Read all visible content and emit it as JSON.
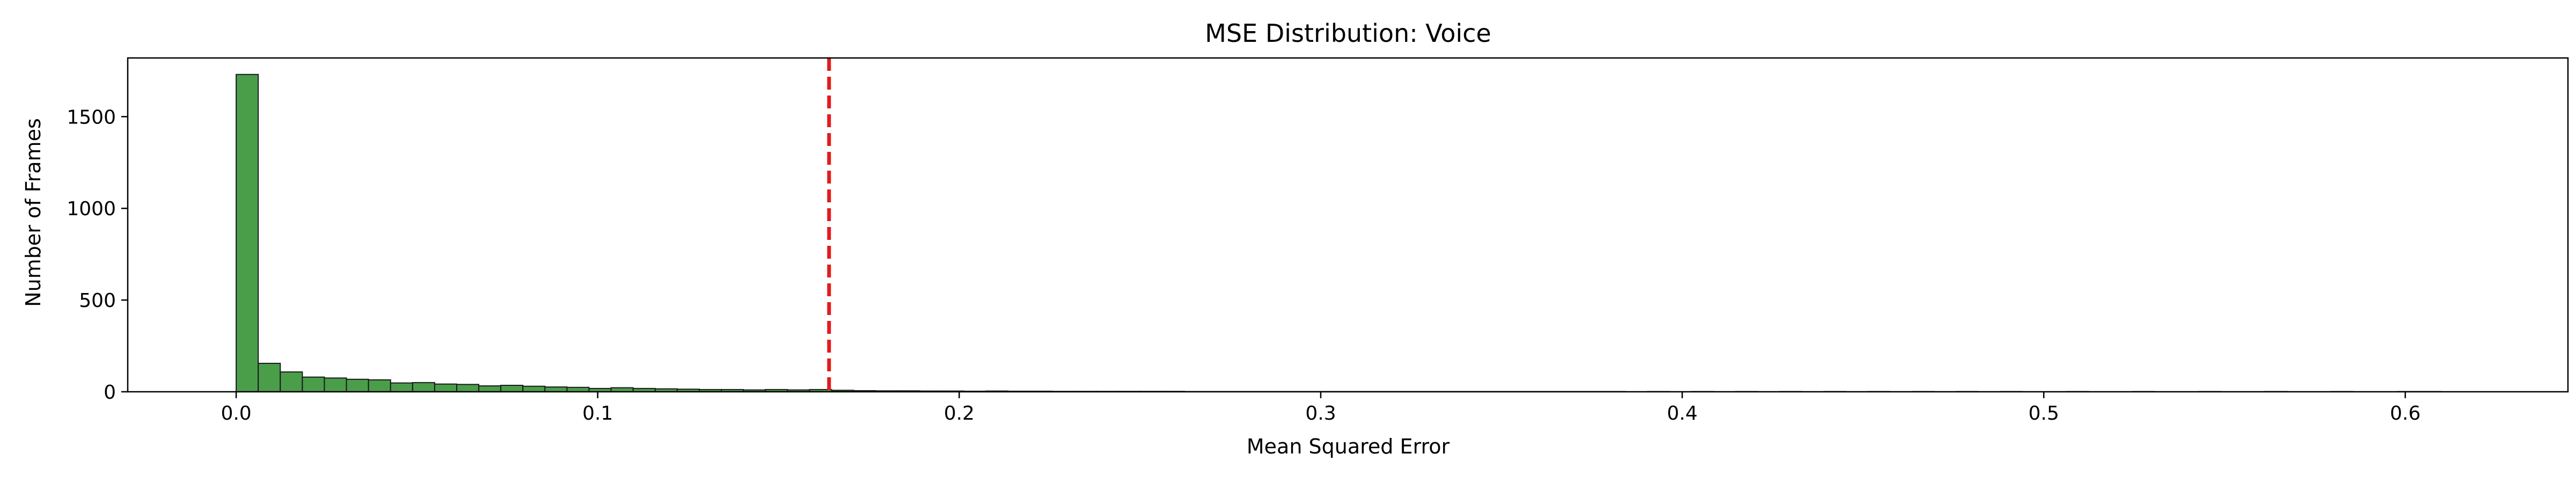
{
  "chart_data": {
    "type": "histogram",
    "title": "MSE Distribution: Voice",
    "xlabel": "Mean Squared Error",
    "ylabel": "Number of Frames",
    "xlim": [
      -0.03,
      0.645
    ],
    "ylim": [
      0,
      1820
    ],
    "xticks": [
      0.0,
      0.1,
      0.2,
      0.3,
      0.4,
      0.5,
      0.6
    ],
    "xtick_labels": [
      "0.0",
      "0.1",
      "0.2",
      "0.3",
      "0.4",
      "0.5",
      "0.6"
    ],
    "yticks": [
      0,
      500,
      1000,
      1500
    ],
    "ytick_labels": [
      "0",
      "500",
      "1000",
      "1500"
    ],
    "bin_width": 0.0061,
    "bin_start": 0.0,
    "counts": [
      1730,
      155,
      108,
      80,
      75,
      68,
      65,
      48,
      50,
      42,
      40,
      32,
      35,
      30,
      26,
      24,
      18,
      22,
      18,
      16,
      14,
      12,
      12,
      10,
      12,
      10,
      12,
      8,
      6,
      5,
      5,
      4,
      4,
      3,
      4,
      3,
      3,
      2,
      2,
      2,
      2,
      2,
      2,
      1,
      1,
      1,
      1,
      1,
      1,
      1,
      1,
      1,
      1,
      1,
      1,
      1,
      1,
      1,
      1,
      1,
      1,
      1,
      1,
      0,
      1,
      0,
      1,
      0,
      1,
      0,
      1,
      0,
      1,
      0,
      1,
      0,
      1,
      0,
      1,
      0,
      1,
      0,
      0,
      1,
      0,
      0,
      1,
      0,
      0,
      1,
      0,
      0,
      1,
      0,
      0,
      1,
      0,
      0,
      1,
      1
    ],
    "threshold": 0.164,
    "colors": {
      "bar_fill": "#4a9e4a",
      "bar_edge": "#1a1a1a",
      "threshold_line": "#e31a1c"
    },
    "grid": false,
    "legend": "none"
  }
}
